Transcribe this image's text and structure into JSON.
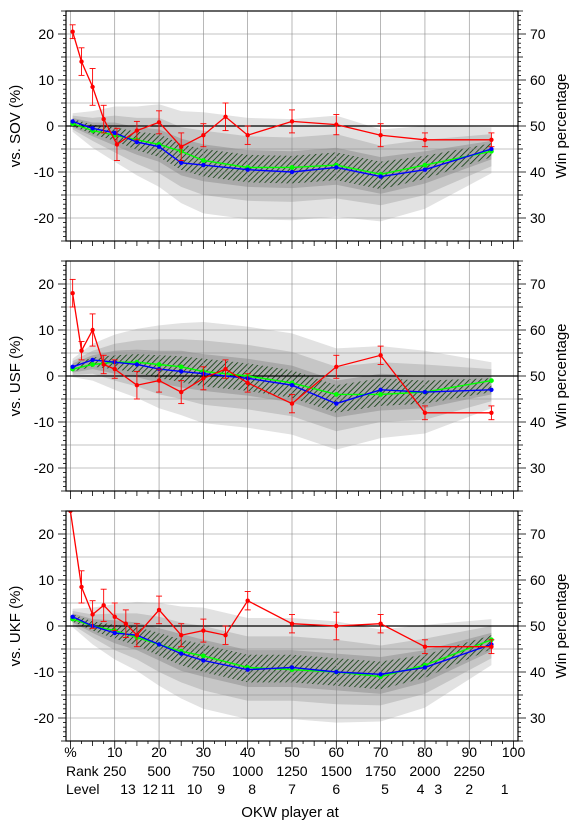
{
  "chart_data": [
    {
      "type": "line",
      "ylabel": "vs. SOV (%)",
      "y2label": "Win percentage",
      "xlim": [
        -1,
        101
      ],
      "ylim": [
        -25,
        25
      ],
      "y2lim": [
        25,
        75
      ],
      "yticks": [
        -20,
        -10,
        0,
        10,
        20
      ],
      "y2ticks": [
        30,
        40,
        50,
        60,
        70
      ],
      "grid": true,
      "series": [
        {
          "name": "",
          "color": "#ff0000",
          "x": [
            0.5,
            2.5,
            5,
            7.5,
            10.5,
            15,
            20,
            25,
            30,
            35,
            40,
            50,
            60,
            70,
            80,
            95
          ],
          "y": [
            20.5,
            14,
            8.5,
            1.5,
            -4,
            -1,
            0.8,
            -4.5,
            -2,
            2,
            -2,
            1,
            0.3,
            -2,
            -3,
            -3
          ],
          "err": [
            1.5,
            3,
            4,
            3,
            3.5,
            2,
            2.5,
            3,
            2.5,
            3,
            2,
            2.5,
            2.2,
            2.5,
            1.5,
            1.5
          ]
        },
        {
          "name": "",
          "color": "#0000ff",
          "x": [
            0.5,
            5,
            10,
            15,
            20,
            25,
            30,
            40,
            50,
            60,
            70,
            80,
            95
          ],
          "y": [
            1,
            -0.5,
            -1.5,
            -3.5,
            -4.5,
            -8,
            -8.5,
            -9.5,
            -10,
            -9,
            -11,
            -9.5,
            -5
          ]
        },
        {
          "name": "",
          "color": "#00ff00",
          "x": [
            0.5,
            5,
            10,
            15,
            20,
            25,
            30,
            40,
            50,
            60,
            70,
            80,
            95
          ],
          "y": [
            0.5,
            -1,
            -2,
            -3,
            -4,
            -5.5,
            -7.5,
            -9,
            -9,
            -8.5,
            -10.5,
            -8.5,
            -5.5
          ]
        }
      ]
    },
    {
      "type": "line",
      "ylabel": "vs. USF (%)",
      "y2label": "Win percentage",
      "xlim": [
        -1,
        101
      ],
      "ylim": [
        -25,
        25
      ],
      "y2lim": [
        25,
        75
      ],
      "yticks": [
        -20,
        -10,
        0,
        10,
        20
      ],
      "y2ticks": [
        30,
        40,
        50,
        60,
        70
      ],
      "grid": true,
      "series": [
        {
          "name": "",
          "color": "#ff0000",
          "x": [
            0.5,
            2.5,
            5,
            7.5,
            10,
            15,
            20,
            25,
            30,
            35,
            40,
            50,
            60,
            70,
            80,
            95
          ],
          "y": [
            18,
            5.5,
            10,
            2.5,
            1.5,
            -2,
            -1,
            -3.5,
            -0.5,
            1.5,
            -1.5,
            -6,
            2,
            4.5,
            -8,
            -8
          ],
          "err": [
            3,
            2,
            3.5,
            2,
            2,
            3,
            2.5,
            2.5,
            2.5,
            2,
            2,
            2,
            2.5,
            2,
            1.5,
            1.5
          ]
        },
        {
          "name": "",
          "color": "#0000ff",
          "x": [
            0.5,
            5,
            10,
            15,
            20,
            25,
            30,
            40,
            50,
            60,
            70,
            80,
            95
          ],
          "y": [
            2,
            3.5,
            3,
            2.5,
            1.5,
            1,
            0.5,
            -0.5,
            -2,
            -6,
            -3,
            -3.5,
            -3
          ]
        },
        {
          "name": "",
          "color": "#00ff00",
          "x": [
            0.5,
            5,
            10,
            15,
            20,
            25,
            30,
            40,
            50,
            60,
            70,
            80,
            95
          ],
          "y": [
            1.5,
            2.5,
            3,
            3,
            2.5,
            2,
            1,
            0,
            -1.5,
            -4,
            -4,
            -3.5,
            -1
          ]
        }
      ]
    },
    {
      "type": "line",
      "ylabel": "vs. UKF (%)",
      "y2label": "Win percentage",
      "xlim": [
        -1,
        101
      ],
      "ylim": [
        -25,
        25
      ],
      "y2lim": [
        25,
        75
      ],
      "yticks": [
        -20,
        -10,
        0,
        10,
        20
      ],
      "y2ticks": [
        30,
        40,
        50,
        60,
        70
      ],
      "grid": true,
      "series": [
        {
          "name": "",
          "color": "#ff0000",
          "x": [
            0,
            2.5,
            5,
            7.5,
            10,
            12.5,
            15,
            20,
            25,
            30,
            35,
            40,
            50,
            60,
            70,
            80,
            95
          ],
          "y": [
            25,
            8.5,
            2.5,
            4.5,
            2,
            0.5,
            -2,
            3.5,
            -2,
            -1,
            -2,
            5.5,
            0.5,
            0,
            0.5,
            -4.5,
            -4.5
          ],
          "err": [
            0,
            3.5,
            3,
            3.5,
            3,
            3,
            2.5,
            3,
            2.5,
            2.5,
            2,
            2,
            2,
            3,
            2,
            1.5,
            1.5
          ]
        },
        {
          "name": "",
          "color": "#0000ff",
          "x": [
            0.5,
            5,
            10,
            15,
            20,
            25,
            30,
            40,
            50,
            60,
            70,
            80,
            95
          ],
          "y": [
            2,
            0,
            -1.5,
            -2,
            -4,
            -6,
            -7.5,
            -9.5,
            -9,
            -10,
            -10.5,
            -9,
            -4
          ]
        },
        {
          "name": "",
          "color": "#00ff00",
          "x": [
            0.5,
            5,
            10,
            15,
            20,
            25,
            30,
            40,
            50,
            60,
            70,
            80,
            95
          ],
          "y": [
            1.5,
            0,
            -1,
            -2.5,
            -4,
            -5.5,
            -6.5,
            -9,
            -9.5,
            -10,
            -11,
            -8.5,
            -3
          ]
        }
      ]
    }
  ],
  "x_axis": {
    "title": "OKW player at",
    "percent_ticks": [
      {
        "x": 0,
        "label": "%"
      },
      {
        "x": 10,
        "label": "10"
      },
      {
        "x": 20,
        "label": "20"
      },
      {
        "x": 30,
        "label": "30"
      },
      {
        "x": 40,
        "label": "40"
      },
      {
        "x": 50,
        "label": "50"
      },
      {
        "x": 60,
        "label": "60"
      },
      {
        "x": 70,
        "label": "70"
      },
      {
        "x": 80,
        "label": "80"
      },
      {
        "x": 90,
        "label": "90"
      },
      {
        "x": 100,
        "label": "100"
      }
    ],
    "rank_label": "Rank",
    "rank_ticks": [
      {
        "x": 10,
        "label": "250"
      },
      {
        "x": 20,
        "label": "500"
      },
      {
        "x": 30,
        "label": "750"
      },
      {
        "x": 40,
        "label": "1000"
      },
      {
        "x": 50,
        "label": "1250"
      },
      {
        "x": 60,
        "label": "1500"
      },
      {
        "x": 70,
        "label": "1750"
      },
      {
        "x": 80,
        "label": "2000"
      },
      {
        "x": 90,
        "label": "2250"
      }
    ],
    "level_label": "Level",
    "level_ticks": [
      {
        "x": 13,
        "label": "13"
      },
      {
        "x": 18,
        "label": "12"
      },
      {
        "x": 22,
        "label": "11"
      },
      {
        "x": 28,
        "label": "10"
      },
      {
        "x": 34,
        "label": "9"
      },
      {
        "x": 41,
        "label": "8"
      },
      {
        "x": 50,
        "label": "7"
      },
      {
        "x": 60,
        "label": "6"
      },
      {
        "x": 71,
        "label": "5"
      },
      {
        "x": 79,
        "label": "4"
      },
      {
        "x": 83,
        "label": "3"
      },
      {
        "x": 90,
        "label": "2"
      },
      {
        "x": 98,
        "label": "1"
      }
    ]
  }
}
